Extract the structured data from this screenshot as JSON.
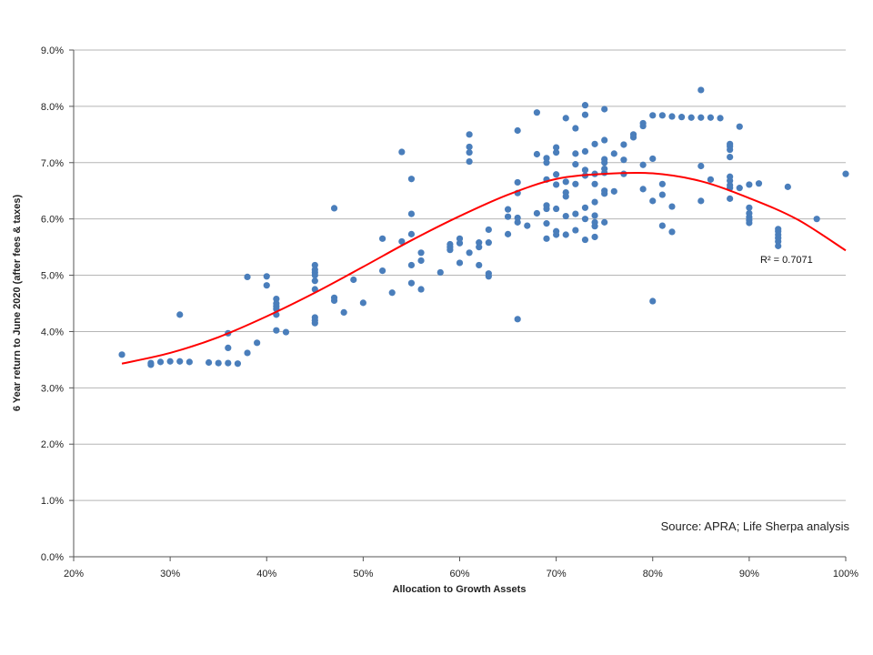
{
  "chart_data": {
    "type": "scatter",
    "title": "",
    "xlabel": "Allocation to Growth Assets",
    "ylabel": "6 Year return to June 2020 (after fees & taxes)",
    "xlim": [
      20,
      100
    ],
    "ylim": [
      0,
      9
    ],
    "x_ticks": [
      20,
      30,
      40,
      50,
      60,
      70,
      80,
      90,
      100
    ],
    "y_ticks": [
      0,
      1,
      2,
      3,
      4,
      5,
      6,
      7,
      8,
      9
    ],
    "x_tick_labels": [
      "20%",
      "30%",
      "40%",
      "50%",
      "60%",
      "70%",
      "80%",
      "90%",
      "100%"
    ],
    "y_tick_labels": [
      "0.0%",
      "1.0%",
      "2.0%",
      "3.0%",
      "4.0%",
      "5.0%",
      "6.0%",
      "7.0%",
      "8.0%",
      "9.0%"
    ],
    "grid": "horizontal",
    "point_color": "#4a7ebb",
    "trend_color": "#ff0000",
    "r_squared_label": "R² = 0.7071",
    "source_note": "Source: APRA; Life Sherpa analysis",
    "points": [
      [
        25,
        3.59
      ],
      [
        28,
        3.41
      ],
      [
        28,
        3.44
      ],
      [
        29,
        3.46
      ],
      [
        30,
        3.47
      ],
      [
        31,
        3.47
      ],
      [
        31,
        4.3
      ],
      [
        32,
        3.46
      ],
      [
        34,
        3.45
      ],
      [
        35,
        3.44
      ],
      [
        36,
        3.44
      ],
      [
        36,
        3.71
      ],
      [
        36,
        3.97
      ],
      [
        37,
        3.43
      ],
      [
        38,
        3.62
      ],
      [
        38,
        4.97
      ],
      [
        39,
        3.8
      ],
      [
        40,
        4.82
      ],
      [
        40,
        4.98
      ],
      [
        41,
        4.02
      ],
      [
        41,
        4.3
      ],
      [
        41,
        4.4
      ],
      [
        41,
        4.45
      ],
      [
        41,
        4.5
      ],
      [
        41,
        4.58
      ],
      [
        42,
        3.99
      ],
      [
        45,
        4.15
      ],
      [
        45,
        4.2
      ],
      [
        45,
        4.25
      ],
      [
        45,
        4.75
      ],
      [
        45,
        4.9
      ],
      [
        45,
        5.0
      ],
      [
        45,
        5.05
      ],
      [
        45,
        5.1
      ],
      [
        45,
        5.18
      ],
      [
        47,
        4.55
      ],
      [
        47,
        4.6
      ],
      [
        47,
        6.19
      ],
      [
        48,
        4.34
      ],
      [
        49,
        4.92
      ],
      [
        50,
        4.51
      ],
      [
        52,
        5.08
      ],
      [
        52,
        5.65
      ],
      [
        53,
        4.69
      ],
      [
        54,
        5.6
      ],
      [
        54,
        7.19
      ],
      [
        55,
        4.86
      ],
      [
        55,
        5.18
      ],
      [
        55,
        5.73
      ],
      [
        55,
        6.09
      ],
      [
        55,
        6.71
      ],
      [
        56,
        4.75
      ],
      [
        56,
        5.26
      ],
      [
        56,
        5.4
      ],
      [
        58,
        5.05
      ],
      [
        59,
        5.45
      ],
      [
        59,
        5.5
      ],
      [
        59,
        5.55
      ],
      [
        60,
        5.22
      ],
      [
        60,
        5.57
      ],
      [
        60,
        5.65
      ],
      [
        61,
        5.4
      ],
      [
        61,
        7.02
      ],
      [
        61,
        7.18
      ],
      [
        61,
        7.28
      ],
      [
        61,
        7.5
      ],
      [
        62,
        5.18
      ],
      [
        62,
        5.5
      ],
      [
        62,
        5.58
      ],
      [
        63,
        4.98
      ],
      [
        63,
        5.03
      ],
      [
        63,
        5.58
      ],
      [
        63,
        5.81
      ],
      [
        65,
        5.73
      ],
      [
        65,
        6.04
      ],
      [
        65,
        6.17
      ],
      [
        66,
        4.22
      ],
      [
        66,
        5.94
      ],
      [
        66,
        6.02
      ],
      [
        66,
        6.46
      ],
      [
        66,
        6.65
      ],
      [
        66,
        7.57
      ],
      [
        67,
        5.88
      ],
      [
        68,
        6.1
      ],
      [
        68,
        7.15
      ],
      [
        68,
        7.89
      ],
      [
        69,
        5.65
      ],
      [
        69,
        5.92
      ],
      [
        69,
        6.18
      ],
      [
        69,
        6.24
      ],
      [
        69,
        6.7
      ],
      [
        69,
        7.0
      ],
      [
        69,
        7.08
      ],
      [
        70,
        5.72
      ],
      [
        70,
        5.78
      ],
      [
        70,
        6.18
      ],
      [
        70,
        6.61
      ],
      [
        70,
        6.79
      ],
      [
        70,
        7.18
      ],
      [
        70,
        7.27
      ],
      [
        71,
        5.72
      ],
      [
        71,
        6.05
      ],
      [
        71,
        6.4
      ],
      [
        71,
        6.47
      ],
      [
        71,
        6.66
      ],
      [
        71,
        7.79
      ],
      [
        72,
        5.8
      ],
      [
        72,
        6.09
      ],
      [
        72,
        6.62
      ],
      [
        72,
        6.97
      ],
      [
        72,
        7.16
      ],
      [
        72,
        7.61
      ],
      [
        73,
        5.63
      ],
      [
        73,
        6.0
      ],
      [
        73,
        6.2
      ],
      [
        73,
        6.77
      ],
      [
        73,
        6.87
      ],
      [
        73,
        7.2
      ],
      [
        73,
        7.85
      ],
      [
        73,
        8.02
      ],
      [
        74,
        5.68
      ],
      [
        74,
        5.87
      ],
      [
        74,
        5.94
      ],
      [
        74,
        6.06
      ],
      [
        74,
        6.3
      ],
      [
        74,
        6.62
      ],
      [
        74,
        6.8
      ],
      [
        74,
        7.33
      ],
      [
        75,
        5.94
      ],
      [
        75,
        6.45
      ],
      [
        75,
        6.5
      ],
      [
        75,
        6.82
      ],
      [
        75,
        6.89
      ],
      [
        75,
        7.0
      ],
      [
        75,
        7.06
      ],
      [
        75,
        7.4
      ],
      [
        75,
        7.95
      ],
      [
        76,
        6.49
      ],
      [
        76,
        7.16
      ],
      [
        77,
        6.8
      ],
      [
        77,
        7.05
      ],
      [
        77,
        7.32
      ],
      [
        78,
        7.45
      ],
      [
        78,
        7.5
      ],
      [
        79,
        6.53
      ],
      [
        79,
        6.96
      ],
      [
        79,
        7.65
      ],
      [
        79,
        7.7
      ],
      [
        80,
        4.54
      ],
      [
        80,
        6.32
      ],
      [
        80,
        7.07
      ],
      [
        80,
        7.84
      ],
      [
        81,
        5.88
      ],
      [
        81,
        6.43
      ],
      [
        81,
        6.62
      ],
      [
        81,
        7.84
      ],
      [
        82,
        5.77
      ],
      [
        82,
        6.22
      ],
      [
        82,
        7.82
      ],
      [
        83,
        7.81
      ],
      [
        84,
        7.8
      ],
      [
        85,
        6.32
      ],
      [
        85,
        6.94
      ],
      [
        85,
        7.8
      ],
      [
        85,
        8.29
      ],
      [
        86,
        6.7
      ],
      [
        86,
        7.8
      ],
      [
        87,
        7.79
      ],
      [
        88,
        6.36
      ],
      [
        88,
        6.55
      ],
      [
        88,
        6.6
      ],
      [
        88,
        6.68
      ],
      [
        88,
        6.75
      ],
      [
        88,
        7.1
      ],
      [
        88,
        7.23
      ],
      [
        88,
        7.29
      ],
      [
        88,
        7.33
      ],
      [
        89,
        6.55
      ],
      [
        89,
        7.64
      ],
      [
        90,
        5.93
      ],
      [
        90,
        5.98
      ],
      [
        90,
        6.03
      ],
      [
        90,
        6.1
      ],
      [
        90,
        6.2
      ],
      [
        90,
        6.61
      ],
      [
        91,
        6.63
      ],
      [
        93,
        5.52
      ],
      [
        93,
        5.6
      ],
      [
        93,
        5.66
      ],
      [
        93,
        5.72
      ],
      [
        93,
        5.78
      ],
      [
        93,
        5.82
      ],
      [
        94,
        6.57
      ],
      [
        97,
        6.0
      ],
      [
        100,
        6.8
      ]
    ],
    "trend": [
      [
        25,
        3.43
      ],
      [
        30,
        3.62
      ],
      [
        35,
        3.9
      ],
      [
        40,
        4.27
      ],
      [
        45,
        4.69
      ],
      [
        50,
        5.15
      ],
      [
        55,
        5.62
      ],
      [
        60,
        6.05
      ],
      [
        65,
        6.43
      ],
      [
        70,
        6.71
      ],
      [
        75,
        6.8
      ],
      [
        80,
        6.81
      ],
      [
        85,
        6.67
      ],
      [
        90,
        6.37
      ],
      [
        95,
        5.99
      ],
      [
        100,
        5.44
      ]
    ]
  }
}
